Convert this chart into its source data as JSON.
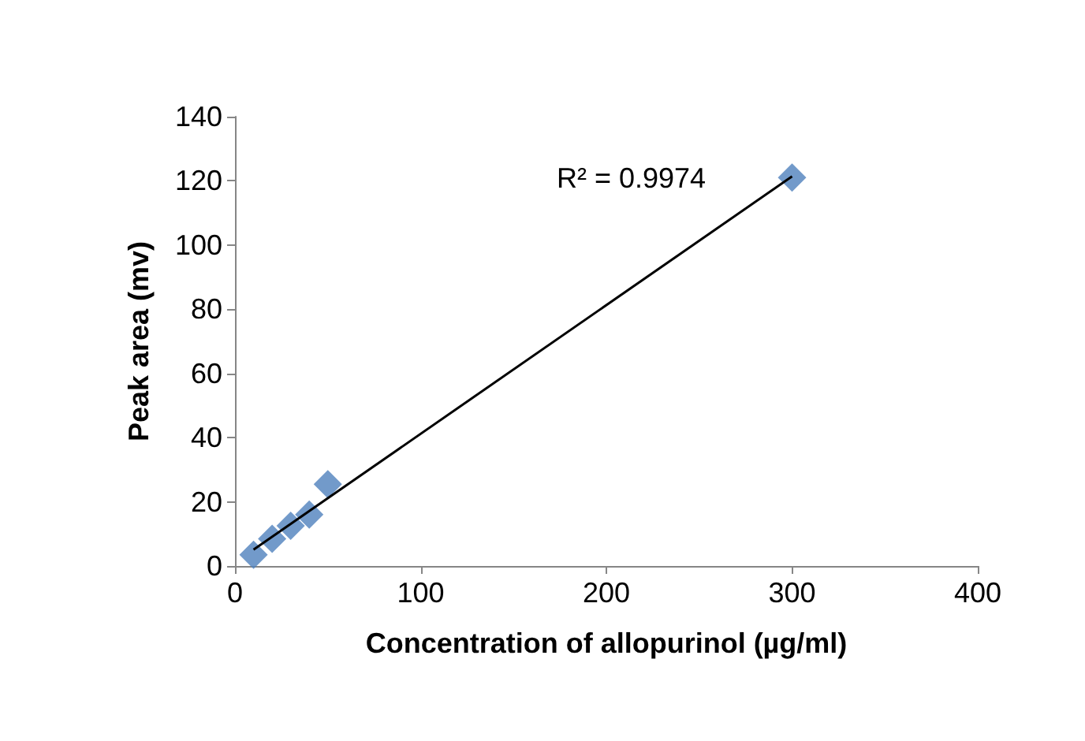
{
  "chart_data": {
    "type": "scatter",
    "xlabel": "Concentration of allopurinol (µg/ml)",
    "ylabel": "Peak area (mv)",
    "x": [
      10,
      20,
      30,
      40,
      50,
      300
    ],
    "series": [
      {
        "color": "#4f81bd",
        "marker": "diamond",
        "values": [
          3.5,
          8.5,
          12.5,
          16,
          25.5,
          121
        ]
      },
      {
        "type": "line",
        "color": "#000000",
        "marker": "none",
        "line_style": "solid",
        "x": [
          10,
          300
        ],
        "values": [
          5.1,
          121.4
        ]
      }
    ],
    "annotations": [
      "R² = 0.9974"
    ],
    "xlim": [
      0,
      400
    ],
    "xticks": [
      0,
      100,
      200,
      300,
      400
    ],
    "ylim": [
      0,
      140
    ],
    "yticks": [
      0,
      20,
      40,
      60,
      80,
      100,
      120,
      140
    ],
    "grid": false
  }
}
